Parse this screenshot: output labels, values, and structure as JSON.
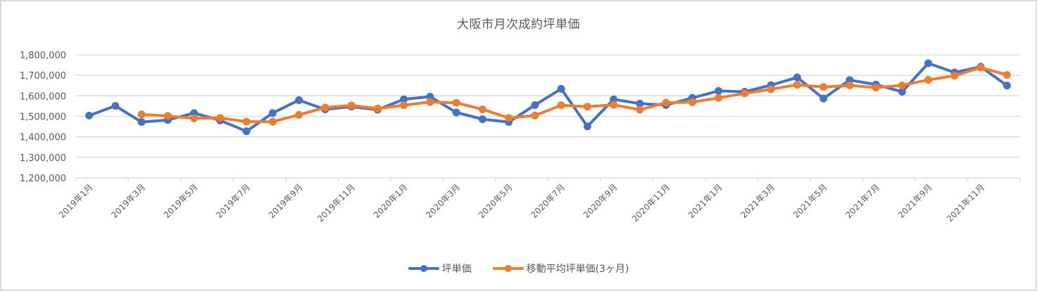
{
  "title": "大阪市月次成約坪単価",
  "legend": [
    {
      "label": "坪単価",
      "color": "#4472C4"
    },
    {
      "label": "移動平均坪単価(3ヶ月)",
      "color": "#ED7D31"
    }
  ],
  "chart_data": {
    "type": "line",
    "title": "大阪市月次成約坪単価",
    "xlabel": "",
    "ylabel": "",
    "ylim": [
      1200000,
      1800000
    ],
    "yticks": [
      "1,200,000",
      "1,300,000",
      "1,400,000",
      "1,500,000",
      "1,600,000",
      "1,700,000",
      "1,800,000"
    ],
    "grid": true,
    "legend_position": "bottom",
    "x": [
      "2019年1月",
      "2019年2月",
      "2019年3月",
      "2019年4月",
      "2019年5月",
      "2019年6月",
      "2019年7月",
      "2019年8月",
      "2019年9月",
      "2019年10月",
      "2019年11月",
      "2019年12月",
      "2020年1月",
      "2020年2月",
      "2020年3月",
      "2020年4月",
      "2020年5月",
      "2020年6月",
      "2020年7月",
      "2020年8月",
      "2020年9月",
      "2020年10月",
      "2020年11月",
      "2020年12月",
      "2021年1月",
      "2021年2月",
      "2021年3月",
      "2021年4月",
      "2021年5月",
      "2021年6月",
      "2021年7月",
      "2021年8月",
      "2021年9月",
      "2021年10月",
      "2021年11月",
      "2021年12月"
    ],
    "xtick_labels": [
      "2019年1月",
      "2019年3月",
      "2019年5月",
      "2019年7月",
      "2019年9月",
      "2019年11月",
      "2020年1月",
      "2020年3月",
      "2020年5月",
      "2020年7月",
      "2020年9月",
      "2020年11月",
      "2021年1月",
      "2021年3月",
      "2021年5月",
      "2021年7月",
      "2021年9月",
      "2021年11月"
    ],
    "series": [
      {
        "name": "坪単価",
        "color": "#4472C4",
        "values": [
          1504000,
          1551000,
          1472000,
          1482000,
          1516000,
          1480000,
          1427000,
          1516000,
          1579000,
          1534000,
          1547000,
          1532000,
          1583000,
          1596000,
          1519000,
          1486000,
          1472000,
          1555000,
          1634000,
          1451000,
          1583000,
          1562000,
          1555000,
          1590000,
          1624000,
          1620000,
          1652000,
          1690000,
          1587000,
          1677000,
          1655000,
          1620000,
          1759000,
          1714000,
          1742000,
          1650000
        ]
      },
      {
        "name": "移動平均坪単価(3ヶ月)",
        "color": "#ED7D31",
        "values": [
          null,
          null,
          1509000,
          1502000,
          1490000,
          1492000,
          1474000,
          1474000,
          1507000,
          1543000,
          1553000,
          1538000,
          1554000,
          1570000,
          1566000,
          1534000,
          1492000,
          1504000,
          1554000,
          1547000,
          1556000,
          1532000,
          1567000,
          1569000,
          1590000,
          1612000,
          1632000,
          1654000,
          1643000,
          1651000,
          1640000,
          1651000,
          1678000,
          1698000,
          1738000,
          1702000
        ]
      }
    ]
  }
}
